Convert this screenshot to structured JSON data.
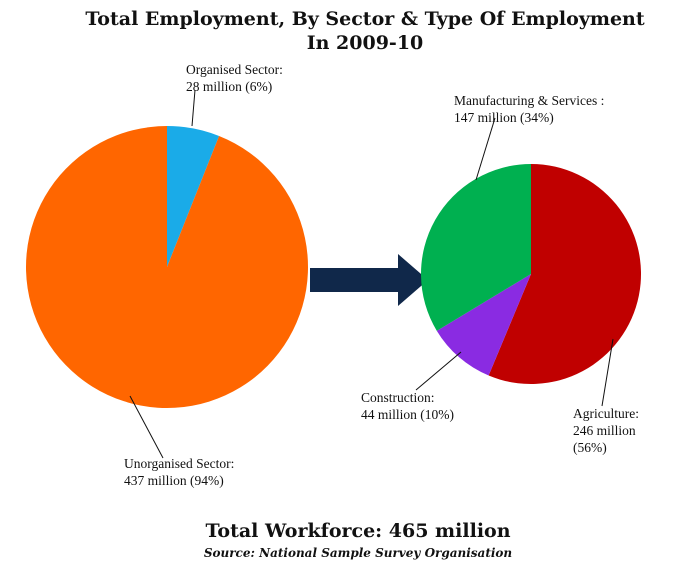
{
  "title": {
    "line1": "Total Employment, By Sector & Type Of Employment",
    "line2": "In 2009-10"
  },
  "chart_data": [
    {
      "type": "pie",
      "slices": [
        {
          "label": "Organised Sector:",
          "value_text": "28 million (6%)",
          "value": 28,
          "percent": 6,
          "color": "#1aabe8"
        },
        {
          "label": "Unorganised Sector:",
          "value_text": "437 million (94%)",
          "value": 437,
          "percent": 94,
          "color": "#ff6600"
        }
      ]
    },
    {
      "type": "pie",
      "slices": [
        {
          "label": "Agriculture:",
          "value_text": [
            "246 million",
            "(56%)"
          ],
          "value": 246,
          "percent": 56,
          "color": "#c00000"
        },
        {
          "label": "Construction:",
          "value_text": "44 million (10%)",
          "value": 44,
          "percent": 10,
          "color": "#8a2be2"
        },
        {
          "label": "Manufacturing & Services :",
          "value_text": "147 million (34%)",
          "value": 147,
          "percent": 34,
          "color": "#00b050"
        }
      ]
    }
  ],
  "arrow_color": "#10284a",
  "footer": {
    "total": "Total Workforce: 465 million",
    "source": "Source: National Sample Survey Organisation"
  }
}
